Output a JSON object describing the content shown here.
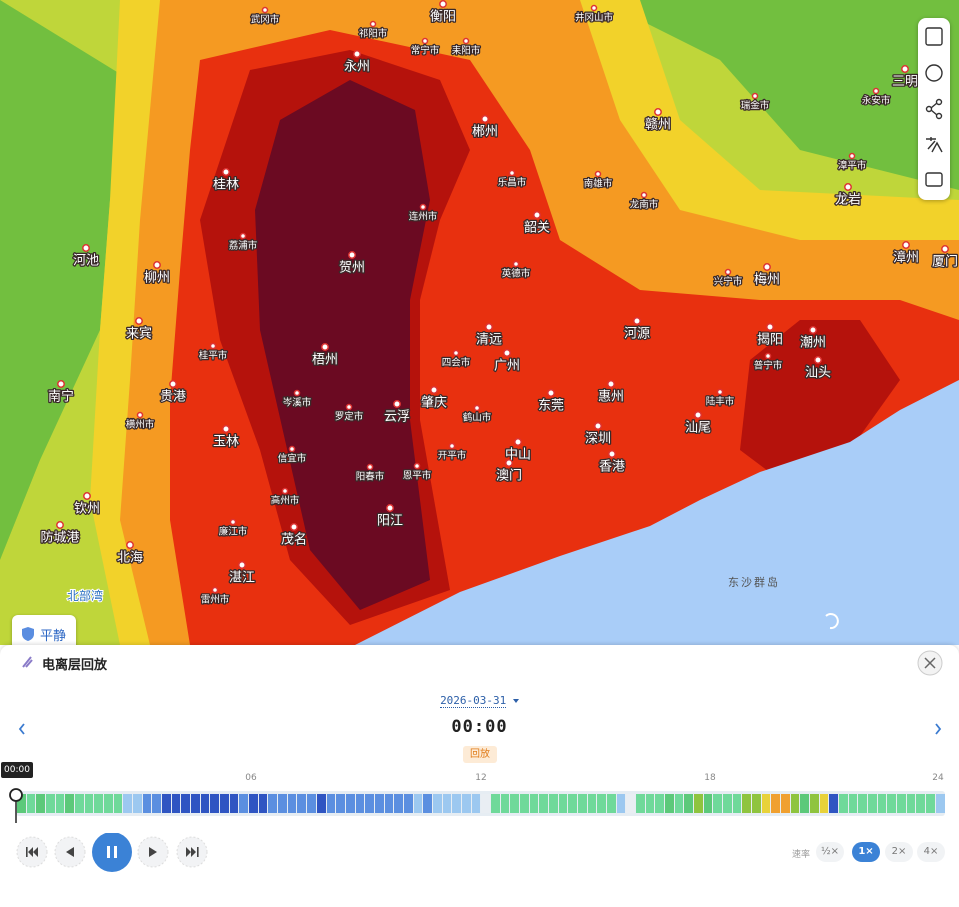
{
  "map": {
    "labels": [
      "衡阳",
      "祁阳市",
      "常宁市",
      "耒阳市",
      "永州",
      "三明",
      "郴州",
      "赣州",
      "瑞金市",
      "桂林",
      "乐昌市",
      "南雄市",
      "龙岩",
      "连州市",
      "韶关",
      "龙南市",
      "河池",
      "柳州",
      "贺州",
      "漳州",
      "厦门",
      "英德市",
      "梅州",
      "兴宁市",
      "来宾",
      "清远",
      "河源",
      "揭阳",
      "潮州",
      "梧州",
      "广州",
      "汕头",
      "南宁",
      "贵港",
      "肇庆",
      "东莞",
      "惠州",
      "云浮",
      "深圳",
      "汕尾",
      "玉林",
      "中山",
      "香港",
      "澳门",
      "阳江",
      "茂名",
      "钦州",
      "防城港",
      "北海",
      "湛江",
      "陆丰市",
      "普宁市",
      "廉江市",
      "雷州市",
      "阳春市",
      "恩平市",
      "开平市",
      "高州市",
      "信宜市",
      "罗定市",
      "岑溪市",
      "桂平市",
      "横州市",
      "鹤山市",
      "四会市",
      "荔浦市",
      "永安市",
      "漳平市",
      "井冈山市",
      "武冈市"
    ],
    "bay": "北部湾",
    "islands": "东沙群岛",
    "status": "平静"
  },
  "panel": {
    "title": "电离层回放",
    "date": "2026-03-31",
    "time": "00:00",
    "mode": "回放",
    "cursor_time": "00:00",
    "hour_ticks": [
      "06",
      "12",
      "18",
      "24"
    ],
    "timeline_colors": [
      "#5cc97a",
      "#6fd99a",
      "#5cc97a",
      "#6fd99a",
      "#6fd99a",
      "#5cc97a",
      "#6fd99a",
      "#6fd99a",
      "#6fd99a",
      "#6fd99a",
      "#6fd99a",
      "#9cc8f0",
      "#9cc8f0",
      "#5b8fe0",
      "#5b8fe0",
      "#2f55c2",
      "#2f55c2",
      "#2f55c2",
      "#2f55c2",
      "#2f55c2",
      "#2f55c2",
      "#2f55c2",
      "#2f55c2",
      "#5b8fe0",
      "#2f55c2",
      "#2f55c2",
      "#5b8fe0",
      "#5b8fe0",
      "#5b8fe0",
      "#5b8fe0",
      "#5b8fe0",
      "#2f55c2",
      "#5b8fe0",
      "#5b8fe0",
      "#5b8fe0",
      "#5b8fe0",
      "#5b8fe0",
      "#5b8fe0",
      "#5b8fe0",
      "#5b8fe0",
      "#5b8fe0",
      "#9cc8f0",
      "#5b8fe0",
      "#9cc8f0",
      "#9cc8f0",
      "#9cc8f0",
      "#9cc8f0",
      "#9cc8f0",
      "#e9eef3",
      "#6fd99a",
      "#6fd99a",
      "#6fd99a",
      "#6fd99a",
      "#6fd99a",
      "#6fd99a",
      "#6fd99a",
      "#6fd99a",
      "#6fd99a",
      "#6fd99a",
      "#6fd99a",
      "#6fd99a",
      "#6fd99a",
      "#9cc8f0",
      "#e9eef3",
      "#6fd99a",
      "#6fd99a",
      "#6fd99a",
      "#5cc97a",
      "#6fd99a",
      "#5cc97a",
      "#8fc43f",
      "#5cc97a",
      "#6fd99a",
      "#6fd99a",
      "#6fd99a",
      "#8fc43f",
      "#8fc43f",
      "#e8d23a",
      "#f0a030",
      "#f0a030",
      "#8fc43f",
      "#5cc97a",
      "#8fc43f",
      "#e8d23a",
      "#2f55c2",
      "#6fd99a",
      "#6fd99a",
      "#6fd99a",
      "#6fd99a",
      "#6fd99a",
      "#6fd99a",
      "#6fd99a",
      "#6fd99a",
      "#6fd99a",
      "#6fd99a",
      "#9cc8f0"
    ],
    "speed_label": "速率",
    "speeds": [
      "½×",
      "1×",
      "2×",
      "4×"
    ],
    "active_speed": 1
  }
}
